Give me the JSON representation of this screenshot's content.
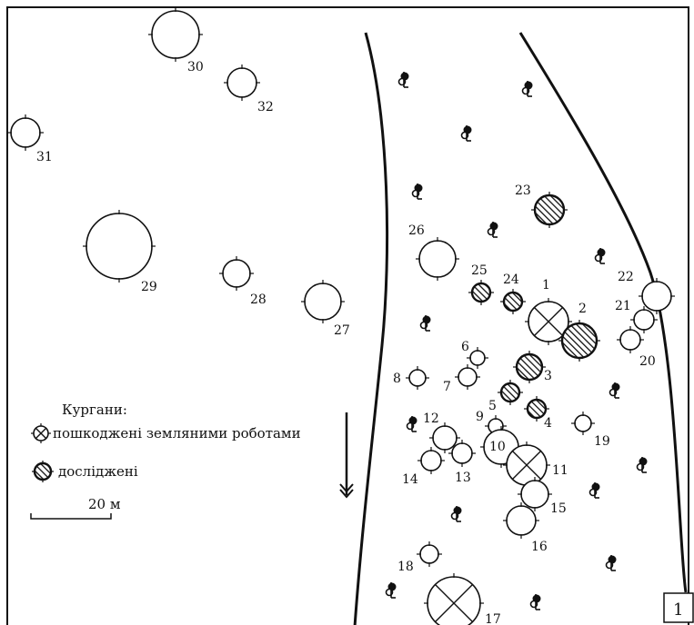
{
  "map_id": "1",
  "legend": {
    "title": "Кургани:",
    "damaged_label": "пошкоджені земляними роботами",
    "excavated_label": "досліджені"
  },
  "scale_label": "20 м",
  "tree_symbol": "tree-icon",
  "mounds": [
    {
      "num": "1",
      "state": "damaged"
    },
    {
      "num": "2",
      "state": "excavated"
    },
    {
      "num": "3",
      "state": "excavated"
    },
    {
      "num": "4",
      "state": "excavated"
    },
    {
      "num": "5",
      "state": "excavated"
    },
    {
      "num": "6",
      "state": "plain"
    },
    {
      "num": "7",
      "state": "plain"
    },
    {
      "num": "8",
      "state": "plain"
    },
    {
      "num": "9",
      "state": "plain"
    },
    {
      "num": "10",
      "state": "plain"
    },
    {
      "num": "11",
      "state": "damaged"
    },
    {
      "num": "12",
      "state": "plain"
    },
    {
      "num": "13",
      "state": "plain"
    },
    {
      "num": "14",
      "state": "plain"
    },
    {
      "num": "15",
      "state": "plain"
    },
    {
      "num": "16",
      "state": "plain"
    },
    {
      "num": "17",
      "state": "damaged"
    },
    {
      "num": "18",
      "state": "plain"
    },
    {
      "num": "19",
      "state": "plain"
    },
    {
      "num": "20",
      "state": "plain"
    },
    {
      "num": "21",
      "state": "plain"
    },
    {
      "num": "22",
      "state": "plain"
    },
    {
      "num": "23",
      "state": "excavated"
    },
    {
      "num": "24",
      "state": "excavated"
    },
    {
      "num": "25",
      "state": "excavated"
    },
    {
      "num": "26",
      "state": "plain"
    },
    {
      "num": "27",
      "state": "plain"
    },
    {
      "num": "28",
      "state": "plain"
    },
    {
      "num": "29",
      "state": "plain"
    },
    {
      "num": "30",
      "state": "plain"
    },
    {
      "num": "31",
      "state": "plain"
    },
    {
      "num": "32",
      "state": "plain"
    }
  ]
}
